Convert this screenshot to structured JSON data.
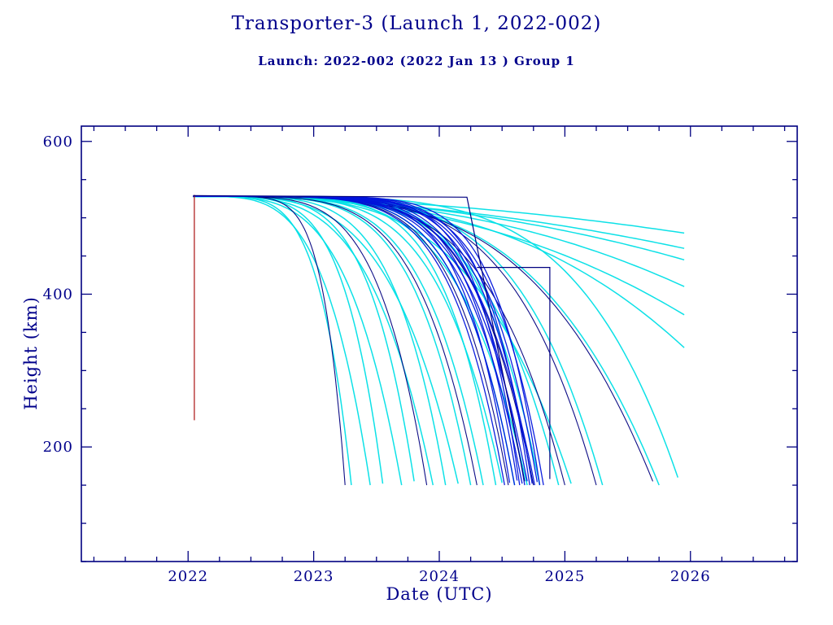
{
  "chart_data": {
    "type": "line",
    "title": "Transporter-3 (Launch 1, 2022-002)",
    "subtitle": "Launch: 2022-002  (2022 Jan 13 )  Group 1",
    "xlabel": "Date (UTC)",
    "ylabel": "Height (km)",
    "xlim": [
      2021.15,
      2026.85
    ],
    "ylim": [
      50,
      620
    ],
    "xticks": [
      2022,
      2023,
      2024,
      2025,
      2026
    ],
    "yticks": [
      200,
      400,
      600
    ],
    "x_minor_step": 0.25,
    "y_minor_step": 50,
    "grid": false,
    "legend": "none",
    "palette": {
      "cyan": "#00dfe6",
      "blue": "#0014dc",
      "navy": "#000080",
      "red": "#aa1111",
      "frame": "#000080"
    },
    "curve_defaults": {
      "start_year": 2022.04,
      "start_height": 528
    },
    "decay_curves": [
      {
        "color": "cyan",
        "end": 2023.3,
        "end_height": 150,
        "exp": 5
      },
      {
        "color": "cyan",
        "end": 2023.45,
        "end_height": 150,
        "exp": 4
      },
      {
        "color": "cyan",
        "end": 2023.55,
        "end_height": 152,
        "exp": 5
      },
      {
        "color": "cyan",
        "end": 2023.7,
        "end_height": 150,
        "exp": 4
      },
      {
        "color": "cyan",
        "end": 2023.8,
        "end_height": 155,
        "exp": 5
      },
      {
        "color": "cyan",
        "end": 2023.95,
        "end_height": 150,
        "exp": 4
      },
      {
        "color": "cyan",
        "end": 2024.05,
        "end_height": 150,
        "exp": 5
      },
      {
        "color": "cyan",
        "end": 2024.15,
        "end_height": 152,
        "exp": 4
      },
      {
        "color": "cyan",
        "end": 2024.25,
        "end_height": 150,
        "exp": 5
      },
      {
        "color": "cyan",
        "end": 2024.35,
        "end_height": 150,
        "exp": 5
      },
      {
        "color": "cyan",
        "end": 2024.45,
        "end_height": 150,
        "exp": 6
      },
      {
        "color": "cyan",
        "end": 2024.5,
        "end_height": 153,
        "exp": 5
      },
      {
        "color": "cyan",
        "end": 2024.6,
        "end_height": 150,
        "exp": 6
      },
      {
        "color": "cyan",
        "end": 2024.7,
        "end_height": 150,
        "exp": 5
      },
      {
        "color": "cyan",
        "end": 2024.8,
        "end_height": 150,
        "exp": 6
      },
      {
        "color": "cyan",
        "end": 2024.95,
        "end_height": 150,
        "exp": 5
      },
      {
        "color": "cyan",
        "end": 2025.05,
        "end_height": 152,
        "exp": 4
      },
      {
        "color": "cyan",
        "end": 2025.3,
        "end_height": 150,
        "exp": 5
      },
      {
        "color": "cyan",
        "end": 2025.75,
        "end_height": 150,
        "exp": 4
      },
      {
        "color": "cyan",
        "end": 2025.9,
        "end_height": 160,
        "exp": 5
      },
      {
        "color": "cyan",
        "end": 2025.95,
        "end_height": 480,
        "exp": 2
      },
      {
        "color": "cyan",
        "end": 2025.95,
        "end_height": 460,
        "exp": 2
      },
      {
        "color": "cyan",
        "end": 2025.95,
        "end_height": 445,
        "exp": 2.2
      },
      {
        "color": "cyan",
        "end": 2025.95,
        "end_height": 410,
        "exp": 2.5
      },
      {
        "color": "cyan",
        "end": 2025.95,
        "end_height": 373,
        "exp": 2.5
      },
      {
        "color": "cyan",
        "end": 2025.95,
        "end_height": 330,
        "exp": 3
      },
      {
        "color": "blue",
        "end": 2024.52,
        "end_height": 150,
        "exp": 6
      },
      {
        "color": "blue",
        "end": 2024.56,
        "end_height": 153,
        "exp": 7
      },
      {
        "color": "blue",
        "end": 2024.6,
        "end_height": 150,
        "exp": 6
      },
      {
        "color": "blue",
        "end": 2024.62,
        "end_height": 156,
        "exp": 7
      },
      {
        "color": "blue",
        "end": 2024.64,
        "end_height": 150,
        "exp": 8
      },
      {
        "color": "blue",
        "end": 2024.66,
        "end_height": 152,
        "exp": 6
      },
      {
        "color": "blue",
        "end": 2024.68,
        "end_height": 150,
        "exp": 7
      },
      {
        "color": "blue",
        "end": 2024.7,
        "end_height": 155,
        "exp": 6
      },
      {
        "color": "blue",
        "end": 2024.72,
        "end_height": 150,
        "exp": 8
      },
      {
        "color": "blue",
        "end": 2024.74,
        "end_height": 152,
        "exp": 7
      },
      {
        "color": "blue",
        "end": 2024.76,
        "end_height": 150,
        "exp": 6
      },
      {
        "color": "blue",
        "end": 2024.78,
        "end_height": 154,
        "exp": 7
      },
      {
        "color": "blue",
        "end": 2024.8,
        "end_height": 150,
        "exp": 8
      },
      {
        "color": "blue",
        "end": 2024.83,
        "end_height": 150,
        "exp": 7
      },
      {
        "color": "navy",
        "end": 2023.25,
        "end_height": 150,
        "exp": 7
      },
      {
        "color": "navy",
        "end": 2023.9,
        "end_height": 150,
        "exp": 5
      },
      {
        "color": "navy",
        "end": 2024.3,
        "end_height": 150,
        "exp": 5
      },
      {
        "color": "navy",
        "end": 2024.55,
        "end_height": 150,
        "exp": 6
      },
      {
        "color": "navy",
        "end": 2024.75,
        "end_height": 150,
        "exp": 6
      },
      {
        "color": "navy",
        "end": 2025.0,
        "end_height": 150,
        "exp": 5
      },
      {
        "color": "navy",
        "end": 2025.25,
        "end_height": 150,
        "exp": 5
      },
      {
        "color": "navy",
        "end": 2025.7,
        "end_height": 155,
        "exp": 4
      }
    ],
    "polylines": [
      {
        "name": "deploy-line",
        "color": "red",
        "points": [
          [
            2022.05,
            235
          ],
          [
            2022.05,
            530
          ]
        ]
      },
      {
        "name": "envelope-top",
        "color": "navy",
        "points": [
          [
            2022.04,
            529
          ],
          [
            2024.22,
            527
          ],
          [
            2024.68,
            155
          ]
        ]
      },
      {
        "name": "envelope-box",
        "color": "navy",
        "points": [
          [
            2024.3,
            435
          ],
          [
            2024.88,
            435
          ],
          [
            2024.88,
            158
          ]
        ]
      }
    ]
  }
}
